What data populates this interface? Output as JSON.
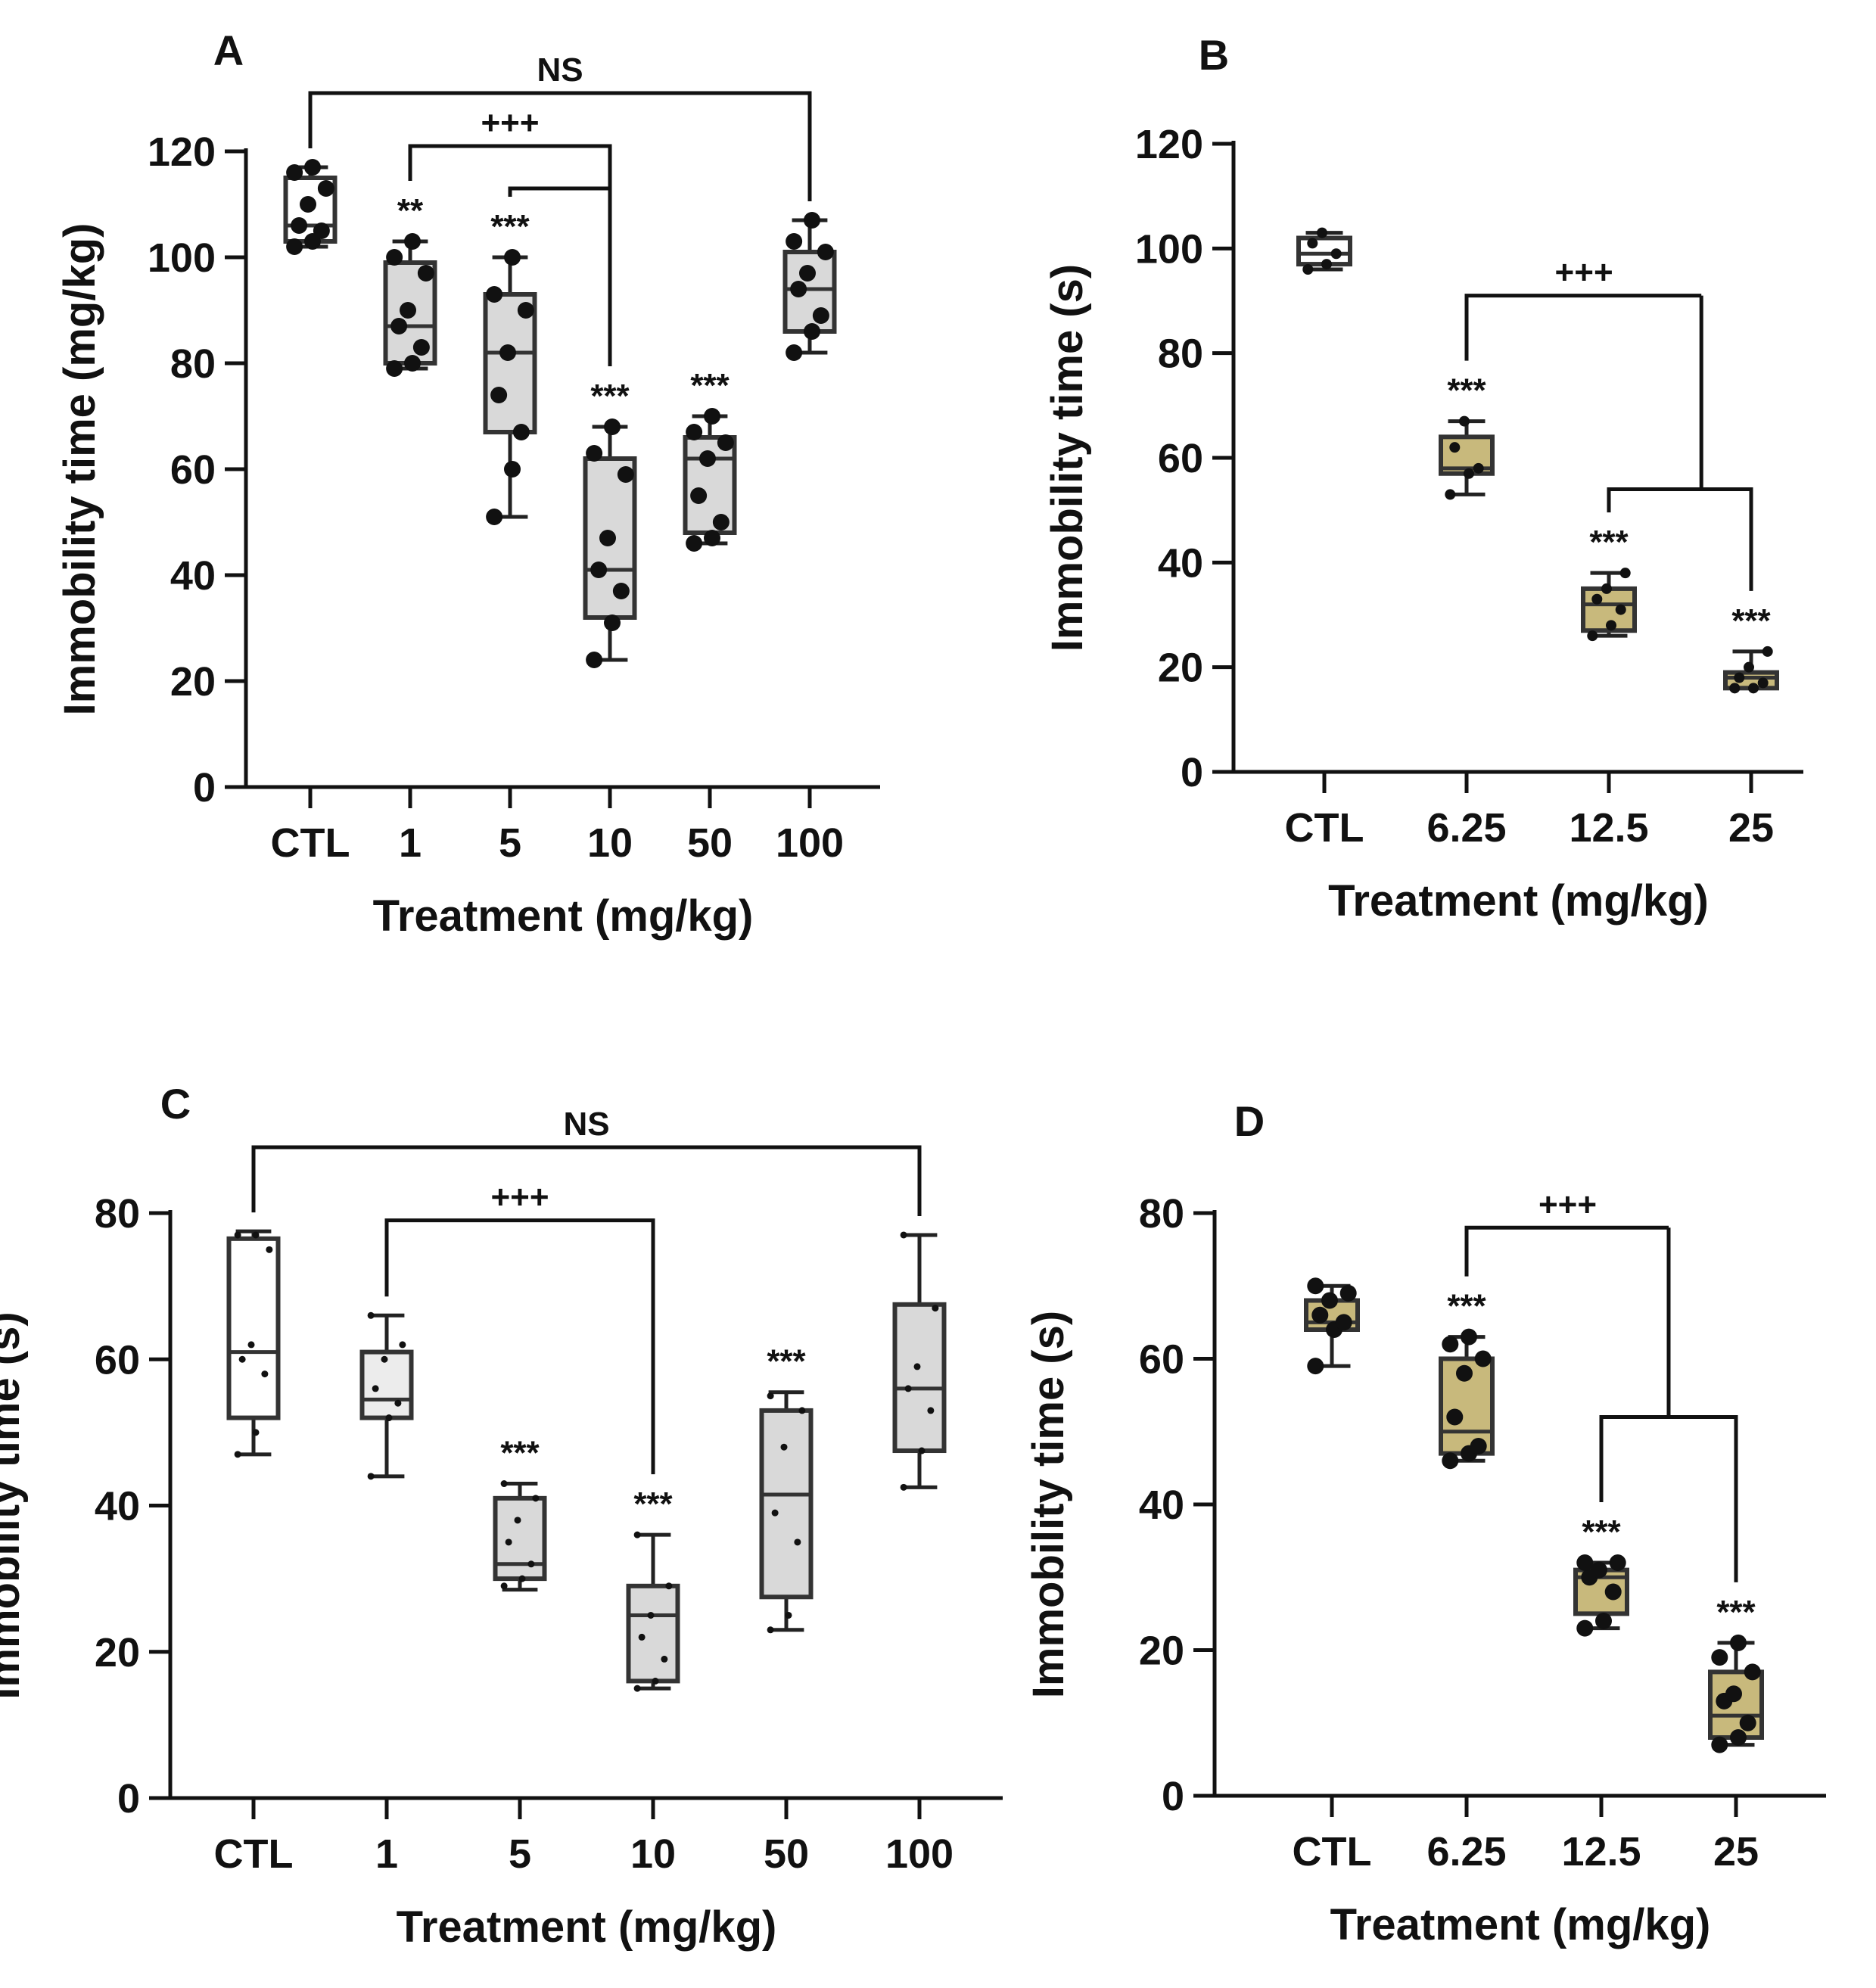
{
  "chart_data": [
    {
      "panel": "A",
      "type": "box",
      "xlabel": "Treatment (mg/kg)",
      "ylabel": "Immobility time (mg/kg)",
      "ylim": [
        0,
        120
      ],
      "yticks": [
        0,
        20,
        40,
        60,
        80,
        100,
        120
      ],
      "categories": [
        "CTL",
        "1",
        "5",
        "10",
        "50",
        "100"
      ],
      "box_color": "#d9d9d9",
      "box_colors": [
        "#ffffff",
        "#d9d9d9",
        "#d9d9d9",
        "#d9d9d9",
        "#d9d9d9",
        "#d9d9d9"
      ],
      "boxes": [
        {
          "min": 102,
          "q1": 103,
          "median": 106,
          "q3": 115,
          "max": 117,
          "points": [
            102,
            103,
            105,
            106,
            110,
            113,
            116,
            117
          ]
        },
        {
          "min": 79,
          "q1": 80,
          "median": 87,
          "q3": 99,
          "max": 103,
          "points": [
            79,
            80,
            83,
            87,
            90,
            97,
            100,
            103
          ]
        },
        {
          "min": 51,
          "q1": 67,
          "median": 82,
          "q3": 93,
          "max": 100,
          "points": [
            51,
            60,
            67,
            74,
            82,
            90,
            93,
            100
          ]
        },
        {
          "min": 24,
          "q1": 32,
          "median": 41,
          "q3": 62,
          "max": 68,
          "points": [
            24,
            31,
            37,
            41,
            47,
            59,
            63,
            68
          ]
        },
        {
          "min": 46,
          "q1": 48,
          "median": 62,
          "q3": 66,
          "max": 70,
          "points": [
            46,
            47,
            50,
            55,
            62,
            65,
            67,
            70
          ]
        },
        {
          "min": 82,
          "q1": 86,
          "median": 94,
          "q3": 101,
          "max": 107,
          "points": [
            82,
            86,
            89,
            94,
            97,
            101,
            103,
            107
          ]
        }
      ],
      "point_size": "large",
      "significance": [
        "",
        "**",
        "***",
        "***",
        "***",
        ""
      ],
      "brackets": [
        {
          "from": 0,
          "to": 5,
          "label": "NS",
          "y": 131
        },
        {
          "from": 1,
          "to": 3,
          "label": "+++",
          "y": 121
        },
        {
          "from": 2,
          "to": 3,
          "label": "",
          "y": 113
        }
      ]
    },
    {
      "panel": "B",
      "type": "box",
      "xlabel": "Treatment (mg/kg)",
      "ylabel": "Immobility time (s)",
      "ylim": [
        0,
        120
      ],
      "yticks": [
        0,
        20,
        40,
        60,
        80,
        100,
        120
      ],
      "categories": [
        "CTL",
        "6.25",
        "12.5",
        "25"
      ],
      "box_color": "#c8b97c",
      "box_colors": [
        "#ffffff",
        "#c8b97c",
        "#c8b97c",
        "#c8b97c"
      ],
      "boxes": [
        {
          "min": 96,
          "q1": 97,
          "median": 99,
          "q3": 102,
          "max": 103,
          "points": [
            96,
            97,
            99,
            101,
            103
          ]
        },
        {
          "min": 53,
          "q1": 57,
          "median": 58,
          "q3": 64,
          "max": 67,
          "points": [
            53,
            57,
            58,
            62,
            67
          ]
        },
        {
          "min": 26,
          "q1": 27,
          "median": 32,
          "q3": 35,
          "max": 38,
          "points": [
            26,
            28,
            31,
            33,
            35,
            38
          ]
        },
        {
          "min": 16,
          "q1": 16,
          "median": 18,
          "q3": 19,
          "max": 23,
          "points": [
            16,
            16,
            17,
            18,
            20,
            23
          ]
        }
      ],
      "point_size": "small",
      "significance": [
        "",
        "***",
        "***",
        "***"
      ],
      "brackets": [
        {
          "from": 1,
          "to": 2.65,
          "label": "+++",
          "y": 91
        },
        {
          "from": 2,
          "to": 3,
          "label": "",
          "y": 54
        }
      ]
    },
    {
      "panel": "C",
      "type": "box",
      "xlabel": "Treatment (mg/kg)",
      "ylabel": "Immobility time (s)",
      "ylim": [
        0,
        80
      ],
      "yticks": [
        0,
        20,
        40,
        60,
        80
      ],
      "categories": [
        "CTL",
        "1",
        "5",
        "10",
        "50",
        "100"
      ],
      "box_color": "#d9d9d9",
      "box_colors": [
        "#ffffff",
        "#ececec",
        "#d9d9d9",
        "#d9d9d9",
        "#d9d9d9",
        "#d9d9d9"
      ],
      "boxes": [
        {
          "min": 47,
          "q1": 52,
          "median": 61,
          "q3": 76.5,
          "max": 77.5,
          "points": [
            47,
            50,
            58,
            60,
            62,
            75,
            77,
            77
          ]
        },
        {
          "min": 44,
          "q1": 52,
          "median": 54.5,
          "q3": 61,
          "max": 66,
          "points": [
            44,
            52,
            54,
            56,
            60,
            62,
            66
          ]
        },
        {
          "min": 28.5,
          "q1": 30,
          "median": 32,
          "q3": 41,
          "max": 43,
          "points": [
            29,
            30,
            32,
            35,
            38,
            41,
            43
          ]
        },
        {
          "min": 15,
          "q1": 16,
          "median": 25,
          "q3": 29,
          "max": 36,
          "points": [
            15,
            16,
            19,
            22,
            25,
            29,
            36
          ]
        },
        {
          "min": 23,
          "q1": 27.5,
          "median": 41.5,
          "q3": 53,
          "max": 55.5,
          "points": [
            23,
            25,
            35,
            39,
            48,
            53,
            55
          ]
        },
        {
          "min": 42.5,
          "q1": 47.5,
          "median": 56,
          "q3": 67.5,
          "max": 77,
          "points": [
            42.5,
            47.5,
            53,
            56,
            59,
            67,
            77
          ]
        }
      ],
      "point_size": "tiny",
      "significance": [
        "",
        "",
        "***",
        "***",
        "***",
        ""
      ],
      "brackets": [
        {
          "from": 0,
          "to": 5,
          "label": "NS",
          "y": 89
        },
        {
          "from": 1,
          "to": 3,
          "label": "+++",
          "y": 79
        }
      ]
    },
    {
      "panel": "D",
      "type": "box",
      "xlabel": "Treatment (mg/kg)",
      "ylabel": "Immobility time (s)",
      "ylim": [
        0,
        80
      ],
      "yticks": [
        0,
        20,
        40,
        60,
        80
      ],
      "categories": [
        "CTL",
        "6.25",
        "12.5",
        "25"
      ],
      "box_color": "#c8b97c",
      "box_colors": [
        "#c8b97c",
        "#c8b97c",
        "#c8b97c",
        "#c8b97c"
      ],
      "boxes": [
        {
          "min": 59,
          "q1": 64,
          "median": 65,
          "q3": 68,
          "max": 70,
          "points": [
            59,
            64,
            65,
            66,
            68,
            69,
            70
          ]
        },
        {
          "min": 46,
          "q1": 47,
          "median": 50,
          "q3": 60,
          "max": 63,
          "points": [
            46,
            47,
            48,
            52,
            58,
            60,
            62,
            63
          ]
        },
        {
          "min": 23,
          "q1": 25,
          "median": 30,
          "q3": 31,
          "max": 32,
          "points": [
            23,
            24,
            28,
            30,
            31,
            32,
            32
          ]
        },
        {
          "min": 7,
          "q1": 8,
          "median": 11,
          "q3": 17,
          "max": 21,
          "points": [
            7,
            8,
            10,
            13,
            14,
            17,
            19,
            21
          ]
        }
      ],
      "point_size": "large",
      "significance": [
        "",
        "***",
        "***",
        "***"
      ],
      "brackets": [
        {
          "from": 1,
          "to": 2.5,
          "label": "+++",
          "y": 78
        },
        {
          "from": 2,
          "to": 3,
          "label": "",
          "y": 52
        }
      ]
    }
  ]
}
